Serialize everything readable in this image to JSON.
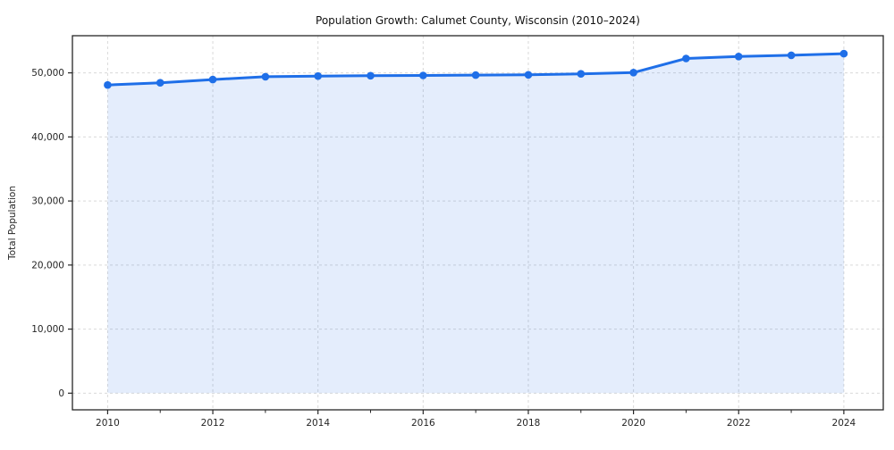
{
  "chart_data": {
    "type": "area",
    "title": "Population Growth: Calumet County, Wisconsin (2010–2024)",
    "xlabel": "",
    "ylabel": "Total Population",
    "series_name": "Total Population",
    "x": [
      2010,
      2011,
      2012,
      2013,
      2014,
      2015,
      2016,
      2017,
      2018,
      2019,
      2020,
      2021,
      2022,
      2023,
      2024
    ],
    "values": [
      48100,
      48450,
      48950,
      49400,
      49500,
      49550,
      49600,
      49650,
      49700,
      49850,
      50050,
      52250,
      52550,
      52750,
      53000
    ],
    "xlim": [
      2009.33,
      2024.75
    ],
    "ylim": [
      -2600,
      55800
    ],
    "xticks_major": [
      2010,
      2012,
      2014,
      2016,
      2018,
      2020,
      2022,
      2024
    ],
    "xtick_labels": [
      "2010",
      "2012",
      "2014",
      "2016",
      "2018",
      "2020",
      "2022",
      "2024"
    ],
    "xticks_minor": [
      2011,
      2013,
      2015,
      2017,
      2019,
      2021,
      2023
    ],
    "yticks": [
      0,
      10000,
      20000,
      30000,
      40000,
      50000
    ],
    "ytick_labels": [
      "0",
      "10,000",
      "20,000",
      "30,000",
      "40,000",
      "50,000"
    ],
    "baseline": 0,
    "grid": true,
    "grid_style": "dashed",
    "legend": "none",
    "marker": "circle",
    "colors": {
      "line": "#1f6fe8",
      "fill": "#1f6fe8",
      "fill_opacity": "0.12",
      "grid": "#d9d9d9",
      "spine": "#262626",
      "text": "#262626",
      "background": "#ffffff"
    }
  }
}
